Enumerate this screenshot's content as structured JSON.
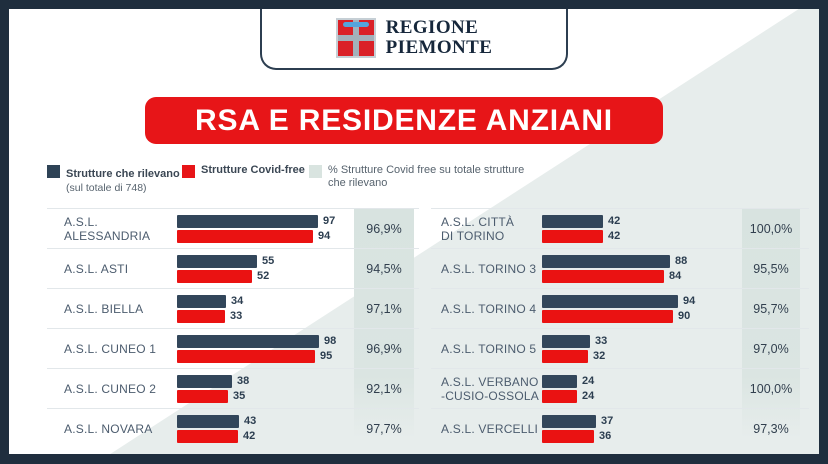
{
  "header": {
    "region_line1": "REGIONE",
    "region_line2": "PIEMONTE"
  },
  "title": "RSA E RESIDENZE ANZIANI",
  "legend": [
    {
      "label": "Strutture che rilevano",
      "sublabel": "(sul totale di 748)",
      "swatch": "#2e4356"
    },
    {
      "label": "Strutture Covid-free",
      "sublabel": "",
      "swatch": "#e71518"
    },
    {
      "label": "% Strutture Covid free su totale strutture\nche rilevano",
      "sublabel": "",
      "swatch": "#d9e4e0"
    }
  ],
  "colors": {
    "frame_navy": "#1f2e3e",
    "bar_dark": "#32465a",
    "bar_red": "#ea1212",
    "title_red": "#e71518",
    "band_gray": "#d9e4e0",
    "shade_gray": "#e7edec"
  },
  "chart_data": {
    "type": "bar",
    "orientation": "horizontal",
    "title": "RSA E RESIDENZE ANZIANI",
    "series_names": [
      "Strutture che rilevano",
      "Strutture Covid-free"
    ],
    "total_note": "sul totale di 748",
    "value_range": [
      0,
      100
    ],
    "columns": [
      {
        "rows": [
          {
            "label": "A.S.L. ALESSANDRIA",
            "values": [
              97,
              94
            ],
            "pct": "96,9%"
          },
          {
            "label": "A.S.L. ASTI",
            "values": [
              55,
              52
            ],
            "pct": "94,5%"
          },
          {
            "label": "A.S.L. BIELLA",
            "values": [
              34,
              33
            ],
            "pct": "97,1%"
          },
          {
            "label": "A.S.L. CUNEO 1",
            "values": [
              98,
              95
            ],
            "pct": "96,9%"
          },
          {
            "label": "A.S.L. CUNEO 2",
            "values": [
              38,
              35
            ],
            "pct": "92,1%"
          },
          {
            "label": "A.S.L. NOVARA",
            "values": [
              43,
              42
            ],
            "pct": "97,7%"
          }
        ]
      },
      {
        "rows": [
          {
            "label": "A.S.L. CITTÀ\nDI TORINO",
            "values": [
              42,
              42
            ],
            "pct": "100,0%"
          },
          {
            "label": "A.S.L. TORINO 3",
            "values": [
              88,
              84
            ],
            "pct": "95,5%"
          },
          {
            "label": "A.S.L. TORINO 4",
            "values": [
              94,
              90
            ],
            "pct": "95,7%"
          },
          {
            "label": "A.S.L. TORINO 5",
            "values": [
              33,
              32
            ],
            "pct": "97,0%"
          },
          {
            "label": "A.S.L. VERBANO\n-CUSIO-OSSOLA",
            "values": [
              24,
              24
            ],
            "pct": "100,0%"
          },
          {
            "label": "A.S.L. VERCELLI",
            "values": [
              37,
              36
            ],
            "pct": "97,3%"
          }
        ]
      }
    ]
  }
}
